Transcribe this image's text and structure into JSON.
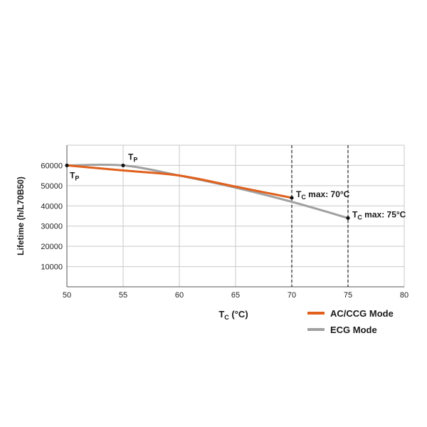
{
  "chart_data": {
    "type": "line",
    "xlabel": {
      "main": "T",
      "sub": "C",
      "rest": " (°C)"
    },
    "ylabel": "Lifetime (h/L70B50)",
    "xlim": [
      50,
      80
    ],
    "ylim": [
      0,
      70000
    ],
    "x_ticks": [
      50,
      55,
      60,
      65,
      70,
      75,
      80
    ],
    "y_ticks": [
      10000,
      20000,
      30000,
      40000,
      50000,
      60000
    ],
    "y_tick_labels": [
      "10000",
      "20000",
      "30000",
      "40000",
      "50000",
      "60000"
    ],
    "x_tick_labels": [
      "50",
      "55",
      "60",
      "65",
      "70",
      "75",
      "80"
    ],
    "grid": true,
    "legend_position": "bottom-right",
    "series": [
      {
        "name": "AC/CCG Mode",
        "color": "#e0601c",
        "x": [
          50,
          55,
          60,
          65,
          70
        ],
        "y": [
          60000,
          57500,
          55000,
          49500,
          44000
        ]
      },
      {
        "name": "ECG Mode",
        "color": "#a0a0a0",
        "x": [
          50,
          55,
          60,
          65,
          70,
          75
        ],
        "y": [
          60000,
          60000,
          55000,
          49000,
          42000,
          34000
        ]
      }
    ],
    "vlines": [
      70,
      75
    ],
    "annotations": [
      {
        "x": 50,
        "y": 60000,
        "main": "T",
        "sub": "P",
        "pos": "below-right"
      },
      {
        "x": 55,
        "y": 60000,
        "main": "T",
        "sub": "P",
        "pos": "above-right"
      },
      {
        "x": 70,
        "y": 44000,
        "main": "T",
        "sub": "C",
        "rest": " max: 70°C",
        "pos": "right"
      },
      {
        "x": 75,
        "y": 34000,
        "main": "T",
        "sub": "C",
        "rest": " max: 75°C",
        "pos": "right"
      }
    ]
  }
}
